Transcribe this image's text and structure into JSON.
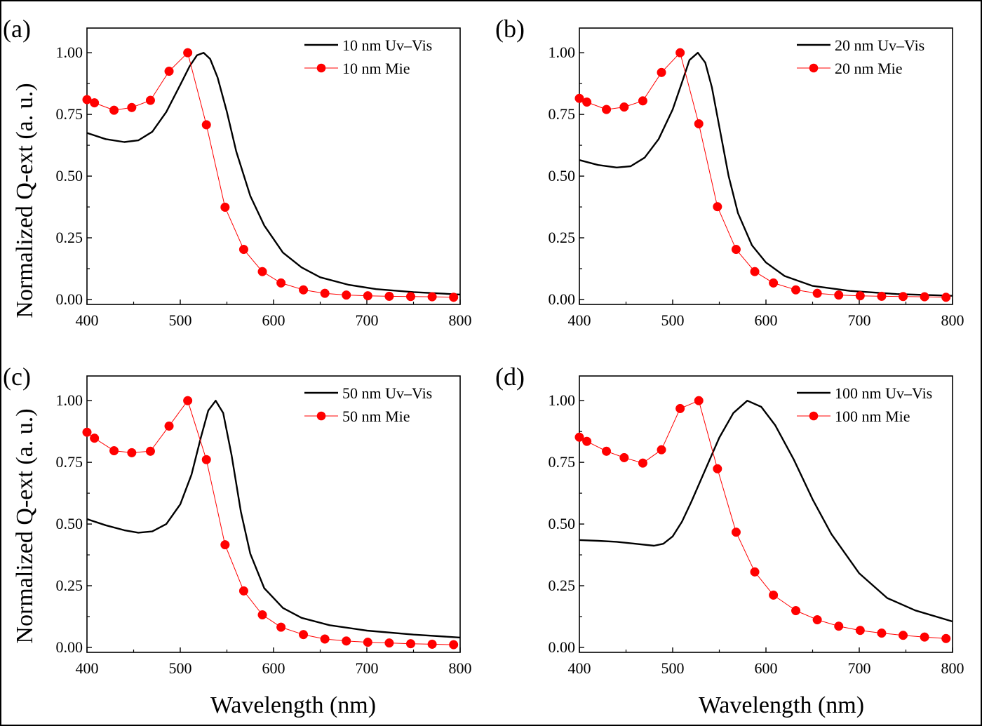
{
  "figure": {
    "ylabel": "Normalized Q-ext (a. u.)",
    "xlabel": "Wavelength (nm)"
  },
  "colors": {
    "uvvis": "#000000",
    "mie": "#ff0000"
  },
  "chart_data": [
    {
      "type": "line",
      "panel_label": "(a)",
      "xlim": [
        400,
        800
      ],
      "ylim": [
        -0.02,
        1.1
      ],
      "xticks": [
        400,
        500,
        600,
        700,
        800
      ],
      "yticks": [
        0.0,
        0.25,
        0.5,
        0.75,
        1.0
      ],
      "xtick_labels": [
        "400",
        "500",
        "600",
        "700",
        "800"
      ],
      "ytick_labels": [
        "0.00",
        "0.25",
        "0.50",
        "0.75",
        "1.00"
      ],
      "legend_position": "top-right",
      "series": [
        {
          "name": "10 nm Uv–Vis",
          "style": "line",
          "x": [
            400,
            420,
            440,
            455,
            470,
            485,
            500,
            510,
            518,
            525,
            532,
            540,
            550,
            560,
            575,
            590,
            610,
            630,
            650,
            680,
            710,
            750,
            800
          ],
          "y": [
            0.675,
            0.65,
            0.638,
            0.645,
            0.68,
            0.76,
            0.87,
            0.945,
            0.99,
            1.0,
            0.975,
            0.9,
            0.76,
            0.6,
            0.42,
            0.3,
            0.19,
            0.13,
            0.09,
            0.06,
            0.042,
            0.03,
            0.02
          ]
        },
        {
          "name": "10 nm Mie",
          "style": "line-marker",
          "x": [
            400,
            408,
            429,
            448,
            468,
            488,
            508,
            528,
            548,
            568,
            588,
            608,
            632,
            655,
            678,
            701,
            724,
            747,
            770,
            793
          ],
          "y": [
            0.81,
            0.797,
            0.767,
            0.778,
            0.807,
            0.925,
            1.0,
            0.708,
            0.374,
            0.203,
            0.113,
            0.067,
            0.039,
            0.025,
            0.018,
            0.015,
            0.013,
            0.012,
            0.011,
            0.009
          ]
        }
      ]
    },
    {
      "type": "line",
      "panel_label": "(b)",
      "xlim": [
        400,
        800
      ],
      "ylim": [
        -0.02,
        1.1
      ],
      "xticks": [
        400,
        500,
        600,
        700,
        800
      ],
      "yticks": [
        0.0,
        0.25,
        0.5,
        0.75,
        1.0
      ],
      "xtick_labels": [
        "400",
        "500",
        "600",
        "700",
        "800"
      ],
      "ytick_labels": [
        "0.00",
        "0.25",
        "0.50",
        "0.75",
        "1.00"
      ],
      "legend_position": "top-right",
      "series": [
        {
          "name": "20 nm Uv–Vis",
          "style": "line",
          "x": [
            400,
            420,
            440,
            455,
            470,
            485,
            500,
            510,
            518,
            527,
            535,
            542,
            550,
            560,
            570,
            585,
            600,
            620,
            650,
            690,
            740,
            800
          ],
          "y": [
            0.565,
            0.545,
            0.535,
            0.54,
            0.575,
            0.65,
            0.77,
            0.88,
            0.97,
            1.0,
            0.96,
            0.86,
            0.7,
            0.5,
            0.35,
            0.22,
            0.15,
            0.095,
            0.055,
            0.035,
            0.022,
            0.015
          ]
        },
        {
          "name": "20 nm Mie",
          "style": "line-marker",
          "x": [
            400,
            408,
            429,
            448,
            468,
            488,
            508,
            528,
            548,
            568,
            588,
            608,
            632,
            655,
            678,
            701,
            724,
            747,
            770,
            793
          ],
          "y": [
            0.815,
            0.8,
            0.77,
            0.78,
            0.805,
            0.92,
            1.0,
            0.712,
            0.376,
            0.203,
            0.113,
            0.067,
            0.039,
            0.025,
            0.018,
            0.015,
            0.013,
            0.012,
            0.011,
            0.009
          ]
        }
      ]
    },
    {
      "type": "line",
      "panel_label": "(c)",
      "xlim": [
        400,
        800
      ],
      "ylim": [
        -0.02,
        1.1
      ],
      "xticks": [
        400,
        500,
        600,
        700,
        800
      ],
      "yticks": [
        0.0,
        0.25,
        0.5,
        0.75,
        1.0
      ],
      "xtick_labels": [
        "400",
        "500",
        "600",
        "700",
        "800"
      ],
      "ytick_labels": [
        "0.00",
        "0.25",
        "0.50",
        "0.75",
        "1.00"
      ],
      "legend_position": "top-right",
      "series": [
        {
          "name": "50 nm Uv–Vis",
          "style": "line",
          "x": [
            400,
            420,
            440,
            455,
            470,
            485,
            500,
            512,
            522,
            530,
            538,
            546,
            555,
            565,
            575,
            590,
            610,
            630,
            660,
            700,
            750,
            800
          ],
          "y": [
            0.52,
            0.495,
            0.475,
            0.465,
            0.47,
            0.5,
            0.58,
            0.7,
            0.85,
            0.96,
            1.0,
            0.95,
            0.78,
            0.55,
            0.38,
            0.24,
            0.16,
            0.12,
            0.09,
            0.068,
            0.052,
            0.04
          ]
        },
        {
          "name": "50 nm Mie",
          "style": "line-marker",
          "x": [
            400,
            408,
            429,
            448,
            468,
            488,
            508,
            528,
            548,
            568,
            588,
            608,
            632,
            655,
            678,
            701,
            724,
            747,
            770,
            793
          ],
          "y": [
            0.872,
            0.848,
            0.797,
            0.789,
            0.795,
            0.897,
            1.0,
            0.761,
            0.416,
            0.229,
            0.132,
            0.082,
            0.052,
            0.034,
            0.026,
            0.021,
            0.018,
            0.015,
            0.013,
            0.011
          ]
        }
      ]
    },
    {
      "type": "line",
      "panel_label": "(d)",
      "xlim": [
        400,
        800
      ],
      "ylim": [
        -0.02,
        1.1
      ],
      "xticks": [
        400,
        500,
        600,
        700,
        800
      ],
      "yticks": [
        0.0,
        0.25,
        0.5,
        0.75,
        1.0
      ],
      "xtick_labels": [
        "400",
        "500",
        "600",
        "700",
        "800"
      ],
      "ytick_labels": [
        "0.00",
        "0.25",
        "0.50",
        "0.75",
        "1.00"
      ],
      "legend_position": "top-right",
      "series": [
        {
          "name": "100 nm Uv–Vis",
          "style": "line",
          "x": [
            400,
            420,
            440,
            460,
            480,
            490,
            500,
            510,
            520,
            535,
            550,
            565,
            580,
            595,
            610,
            630,
            650,
            670,
            700,
            730,
            760,
            800
          ],
          "y": [
            0.435,
            0.432,
            0.428,
            0.42,
            0.412,
            0.42,
            0.45,
            0.51,
            0.59,
            0.72,
            0.85,
            0.95,
            1.0,
            0.975,
            0.9,
            0.76,
            0.6,
            0.46,
            0.3,
            0.2,
            0.15,
            0.105
          ]
        },
        {
          "name": "100 nm Mie",
          "style": "line-marker",
          "x": [
            400,
            408,
            429,
            448,
            468,
            488,
            508,
            528,
            548,
            568,
            588,
            608,
            632,
            655,
            678,
            701,
            724,
            747,
            770,
            793
          ],
          "y": [
            0.852,
            0.835,
            0.795,
            0.769,
            0.747,
            0.801,
            0.968,
            1.0,
            0.724,
            0.467,
            0.306,
            0.212,
            0.149,
            0.112,
            0.086,
            0.069,
            0.058,
            0.049,
            0.042,
            0.036
          ]
        }
      ]
    }
  ]
}
